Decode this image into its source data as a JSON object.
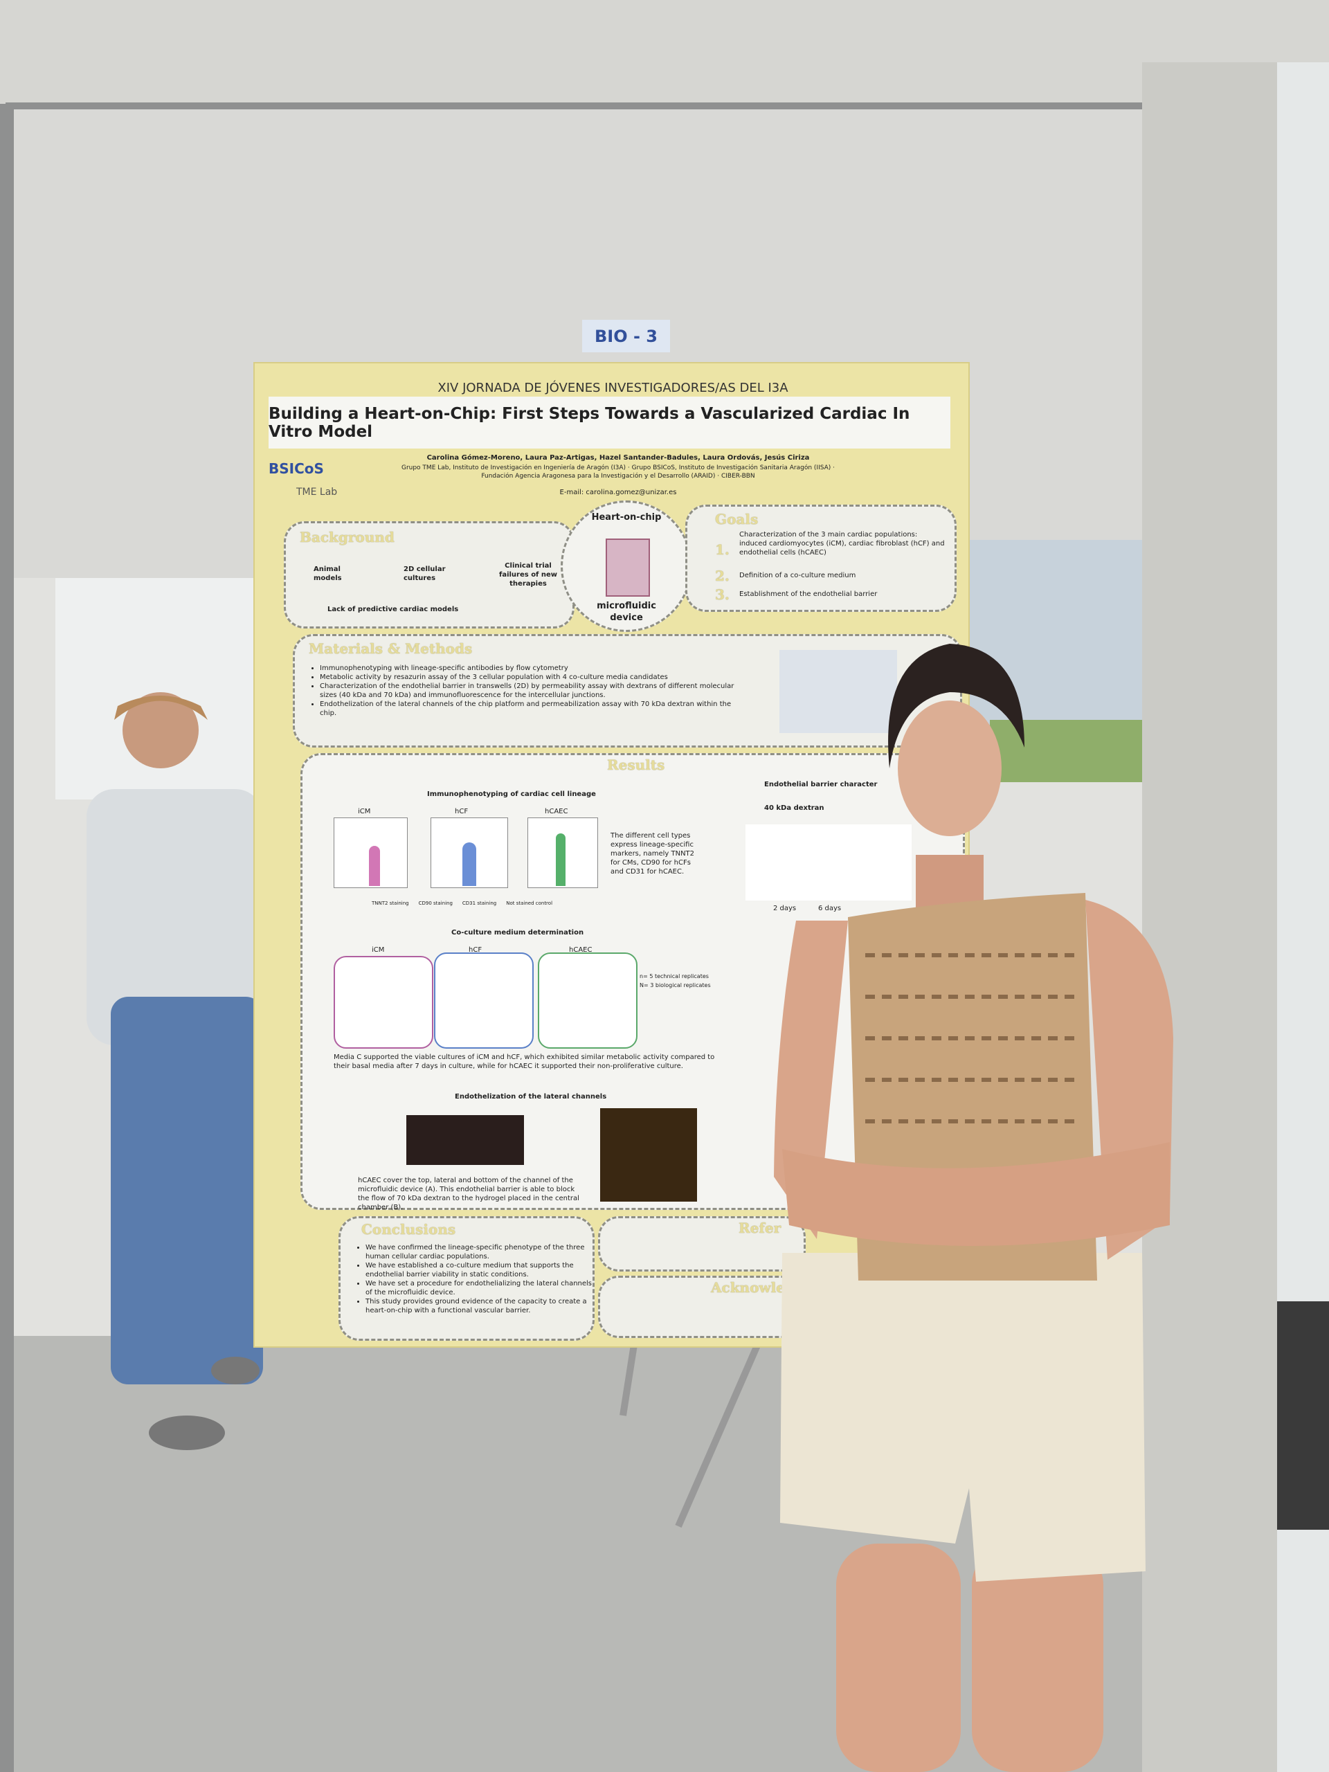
{
  "label": "BIO - 3",
  "poster": {
    "conference": "XIV JORNADA DE JÓVENES INVESTIGADORES/AS DEL I3A",
    "title": "Building a Heart-on-Chip: First Steps Towards a Vascularized Cardiac In Vitro Model",
    "authors": "Carolina Gómez-Moreno, Laura Paz-Artigas, Hazel Santander-Badules, Laura Ordovás, Jesús Ciriza",
    "affiliations": "Grupo TME Lab, Instituto de Investigación en Ingeniería de Aragón (I3A) · Grupo BSICoS, Instituto de Investigación Sanitaria Aragón (IISA) · Fundación Agencia Aragonesa para la Investigación y el Desarrollo (ARAID) · CIBER-BBN",
    "email": "E-mail: carolina.gomez@unizar.es",
    "logos": [
      "BSICoS",
      "TME Lab"
    ],
    "background": {
      "heading": "Background",
      "items": [
        "Animal models",
        "2D cellular cultures",
        "Clinical trial failures of new therapies"
      ],
      "footer": "Lack of predictive cardiac models"
    },
    "diagram": {
      "top": "Heart-on-chip",
      "bottom": "microfluidic device"
    },
    "goals": {
      "heading": "Goals",
      "items": [
        {
          "number": "1.",
          "text": "Characterization of the 3 main cardiac populations: induced cardiomyocytes (iCM), cardiac fibroblast (hCF) and endothelial cells (hCAEC)"
        },
        {
          "number": "2.",
          "text": "Definition of a co-culture medium"
        },
        {
          "number": "3.",
          "text": "Establishment of the endothelial barrier"
        }
      ]
    },
    "methods": {
      "heading": "Materials & Methods",
      "items": [
        "Immunophenotyping with lineage-specific antibodies by flow cytometry",
        "Metabolic activity by resazurin assay of the 3 cellular population with 4 co-culture media candidates",
        "Characterization of the endothelial barrier in transwells (2D) by permeability assay with dextrans of different molecular sizes (40 kDa and 70 kDa) and immunofluorescence for the intercellular junctions.",
        "Endothelization of the lateral channels of the chip platform and permeabilization assay with 70 kDa dextran within the chip."
      ]
    },
    "results": {
      "heading": "Results",
      "immuno": {
        "heading": "Immunophenotyping of cardiac cell lineage",
        "panels": [
          "iCM",
          "hCF",
          "hCAEC"
        ],
        "text": "The different cell types express lineage-specific markers, namely TNNT2 for CMs, CD90 for hCFs and CD31 for hCAEC.",
        "legend": [
          "TNNT2 staining",
          "CD90 staining",
          "CD31 staining",
          "Not stained control"
        ]
      },
      "coculture": {
        "heading": "Co-culture medium determination",
        "panels": [
          "iCM",
          "hCF",
          "hCAEC"
        ],
        "replicates": [
          "n= 5 technical replicates",
          "N= 3 biological replicates"
        ],
        "text": "Media C supported the viable cultures of iCM and hCF, which exhibited similar metabolic activity compared to their basal media after 7 days in culture, while for hCAEC it supported their non-proliferative culture."
      },
      "endo": {
        "heading": "Endothelization of the lateral channels",
        "text": "hCAEC cover the top, lateral and bottom of the channel of the microfluidic device (A). This endothelial barrier is able to block the flow of 70 kDa dextran to the hydrogel placed in the central chamber (B)."
      },
      "barrier": {
        "heading": "Endothelial barrier character",
        "subheading": "40 kDa dextran",
        "days": [
          "2 days",
          "6 days"
        ]
      }
    },
    "conclusions": {
      "heading": "Conclusions",
      "items": [
        "We have confirmed the lineage-specific phenotype of the three human cellular cardiac populations.",
        "We have established a co-culture medium that supports the endothelial barrier viability in static conditions.",
        "We have set a procedure for endothelializing the lateral channels of the microfluidic device.",
        "This study provides ground evidence of the capacity to create a heart-on-chip with a functional vascular barrier."
      ]
    },
    "references": "Refer",
    "acknowledgements": "Acknowled"
  }
}
